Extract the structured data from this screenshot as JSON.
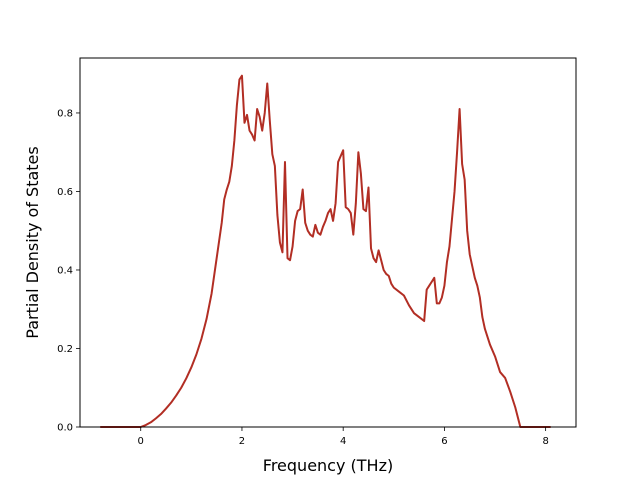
{
  "chart_data": {
    "type": "line",
    "title": "",
    "xlabel": "Frequency (THz)",
    "ylabel": "Partial Density of States",
    "xlim": [
      -1.2,
      8.6
    ],
    "ylim": [
      0.0,
      0.94
    ],
    "x_ticks": [
      0,
      2,
      4,
      6,
      8
    ],
    "x_tick_labels": [
      "0",
      "2",
      "4",
      "6",
      "8"
    ],
    "y_ticks": [
      0.0,
      0.2,
      0.4,
      0.6,
      0.8
    ],
    "y_tick_labels": [
      "0.0",
      "0.2",
      "0.4",
      "0.6",
      "0.8"
    ],
    "grid": false,
    "legend": "none",
    "line_color": "#b22e24",
    "series": [
      {
        "x": [
          -0.8,
          -0.4,
          0.0,
          0.1,
          0.2,
          0.3,
          0.4,
          0.5,
          0.6,
          0.7,
          0.8,
          0.9,
          1.0,
          1.1,
          1.2,
          1.3,
          1.4,
          1.5,
          1.6,
          1.65,
          1.7,
          1.75,
          1.8,
          1.85,
          1.9,
          1.95,
          2.0,
          2.05,
          2.1,
          2.15,
          2.2,
          2.25,
          2.3,
          2.35,
          2.4,
          2.45,
          2.5,
          2.55,
          2.6,
          2.65,
          2.7,
          2.75,
          2.8,
          2.85,
          2.9,
          2.95,
          3.0,
          3.05,
          3.1,
          3.15,
          3.2,
          3.25,
          3.3,
          3.35,
          3.4,
          3.45,
          3.5,
          3.55,
          3.6,
          3.65,
          3.7,
          3.75,
          3.8,
          3.85,
          3.9,
          3.95,
          4.0,
          4.05,
          4.1,
          4.15,
          4.2,
          4.25,
          4.3,
          4.35,
          4.4,
          4.45,
          4.5,
          4.55,
          4.6,
          4.65,
          4.7,
          4.75,
          4.8,
          4.85,
          4.9,
          4.95,
          5.0,
          5.1,
          5.2,
          5.3,
          5.4,
          5.5,
          5.6,
          5.65,
          5.7,
          5.75,
          5.8,
          5.85,
          5.9,
          5.95,
          6.0,
          6.05,
          6.1,
          6.15,
          6.2,
          6.25,
          6.3,
          6.35,
          6.4,
          6.45,
          6.5,
          6.55,
          6.6,
          6.65,
          6.7,
          6.75,
          6.8,
          6.9,
          7.0,
          7.1,
          7.2,
          7.3,
          7.4,
          7.5,
          7.8,
          8.1
        ],
        "y": [
          0.0,
          0.0,
          0.0,
          0.005,
          0.012,
          0.022,
          0.033,
          0.047,
          0.062,
          0.08,
          0.1,
          0.124,
          0.152,
          0.185,
          0.225,
          0.275,
          0.34,
          0.43,
          0.52,
          0.58,
          0.605,
          0.625,
          0.665,
          0.73,
          0.82,
          0.885,
          0.895,
          0.775,
          0.795,
          0.755,
          0.745,
          0.73,
          0.81,
          0.79,
          0.755,
          0.8,
          0.875,
          0.78,
          0.695,
          0.665,
          0.54,
          0.47,
          0.445,
          0.675,
          0.43,
          0.425,
          0.46,
          0.525,
          0.55,
          0.555,
          0.605,
          0.52,
          0.5,
          0.49,
          0.485,
          0.515,
          0.495,
          0.49,
          0.51,
          0.525,
          0.545,
          0.555,
          0.525,
          0.57,
          0.675,
          0.69,
          0.705,
          0.56,
          0.555,
          0.545,
          0.49,
          0.57,
          0.7,
          0.645,
          0.555,
          0.55,
          0.61,
          0.455,
          0.43,
          0.42,
          0.45,
          0.425,
          0.4,
          0.39,
          0.385,
          0.365,
          0.355,
          0.345,
          0.335,
          0.31,
          0.29,
          0.28,
          0.27,
          0.35,
          0.36,
          0.37,
          0.38,
          0.315,
          0.315,
          0.33,
          0.36,
          0.42,
          0.46,
          0.53,
          0.6,
          0.7,
          0.81,
          0.67,
          0.63,
          0.5,
          0.44,
          0.41,
          0.38,
          0.36,
          0.33,
          0.28,
          0.25,
          0.21,
          0.18,
          0.14,
          0.125,
          0.09,
          0.05,
          0.0,
          0.0,
          0.0
        ]
      }
    ]
  }
}
